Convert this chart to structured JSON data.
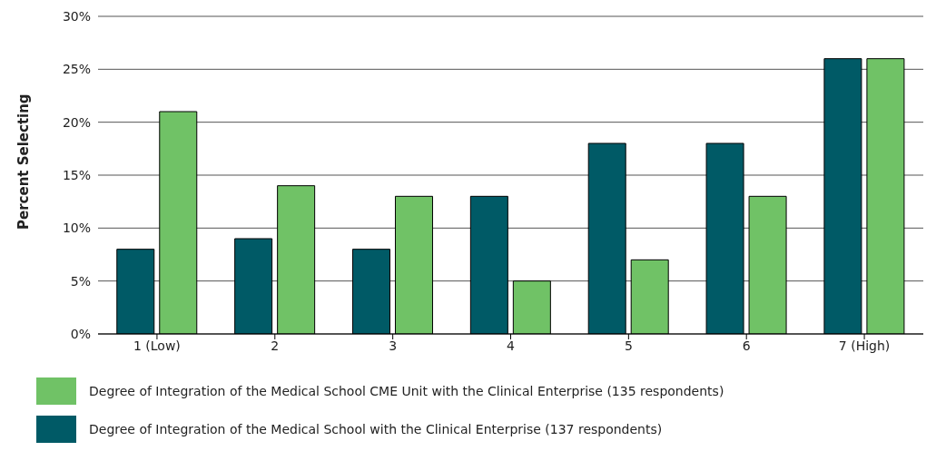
{
  "chart_data": {
    "type": "bar",
    "ylabel": "Percent Selecting",
    "categories": [
      "1 (Low)",
      "2",
      "3",
      "4",
      "5",
      "6",
      "7 (High)"
    ],
    "series": [
      {
        "name": "Degree of Integration of the Medical School with the Clinical Enterprise (137 respondents)",
        "color": "#005a66",
        "values": [
          8,
          9,
          8,
          13,
          18,
          18,
          26
        ]
      },
      {
        "name": "Degree of Integration of the Medical School CME Unit with the Clinical Enterprise (135 respondents)",
        "color": "#70c266",
        "values": [
          21,
          14,
          13,
          5,
          7,
          13,
          26
        ]
      }
    ],
    "ylim": [
      0,
      30
    ],
    "yticks": [
      {
        "value": 0,
        "label": "0%"
      },
      {
        "value": 5,
        "label": "5%"
      },
      {
        "value": 10,
        "label": "10%"
      },
      {
        "value": 15,
        "label": "15%"
      },
      {
        "value": 20,
        "label": "20%"
      },
      {
        "value": 25,
        "label": "25%"
      },
      {
        "value": 30,
        "label": "30%"
      }
    ],
    "grid": "y",
    "legend": "bottom"
  }
}
